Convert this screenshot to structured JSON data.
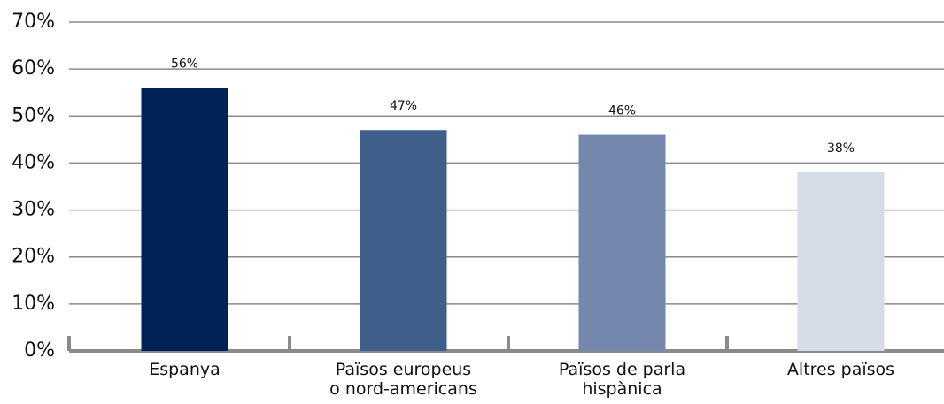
{
  "chart_data": {
    "type": "bar",
    "categories": [
      "Espanya",
      "Països europeus\no nord-americans",
      "Països de parla\nhispànica",
      "Altres països"
    ],
    "values": [
      56,
      47,
      46,
      38
    ],
    "value_labels": [
      "56%",
      "47%",
      "46%",
      "38%"
    ],
    "colors": [
      "#002255",
      "#3f5e8a",
      "#7488ad",
      "#d5dbe7"
    ],
    "ylim": [
      0,
      70
    ],
    "yticks": [
      {
        "value": 0,
        "label": "0%"
      },
      {
        "value": 10,
        "label": "10%"
      },
      {
        "value": 20,
        "label": "20%"
      },
      {
        "value": 30,
        "label": "30%"
      },
      {
        "value": 40,
        "label": "40%"
      },
      {
        "value": 50,
        "label": "50%"
      },
      {
        "value": 60,
        "label": "60%"
      },
      {
        "value": 70,
        "label": "70%"
      }
    ],
    "grid": true
  }
}
